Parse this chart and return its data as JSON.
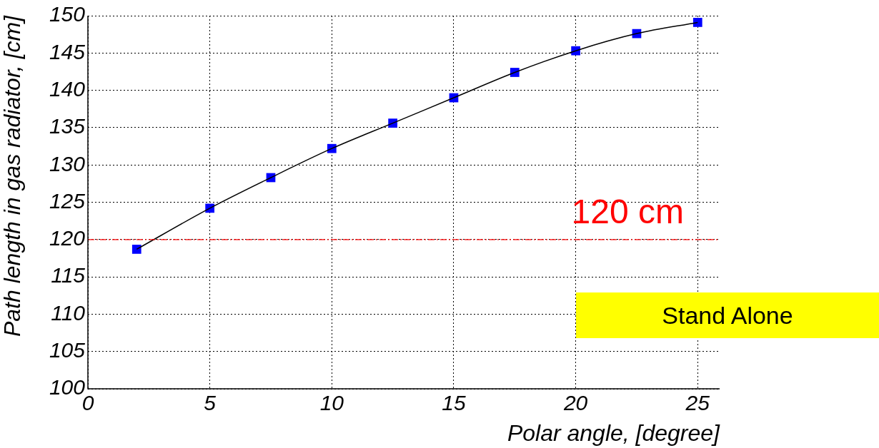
{
  "chart_data": {
    "type": "line",
    "xlabel": "Polar angle, [degree]",
    "ylabel": "Path length in gas radiator, [cm]",
    "x": [
      2,
      5,
      7.5,
      10,
      12.5,
      15,
      17.5,
      20,
      22.5,
      25
    ],
    "series": [
      {
        "type": "line",
        "color": "#000000",
        "marker": "none",
        "values": [
          118.7,
          124.2,
          128.3,
          132.2,
          135.6,
          139.0,
          142.4,
          145.3,
          147.6,
          149.1
        ]
      },
      {
        "type": "scatter",
        "color": "#0000ff",
        "marker": "square",
        "values": [
          118.7,
          124.2,
          128.3,
          132.2,
          135.6,
          139.0,
          142.4,
          145.3,
          147.6,
          149.1
        ]
      }
    ],
    "xlim": [
      0,
      25.9
    ],
    "ylim": [
      100,
      150
    ],
    "xticks": [
      0,
      5,
      10,
      15,
      20,
      25
    ],
    "yticks": [
      100,
      105,
      110,
      115,
      120,
      125,
      130,
      135,
      140,
      145,
      150
    ],
    "grid": true,
    "ref_lines": [
      {
        "axis": "y",
        "value": 120,
        "label": "120 cm",
        "color": "#ff0000",
        "line_style": "dashed"
      }
    ],
    "annotations": [
      "Stand Alone"
    ]
  }
}
